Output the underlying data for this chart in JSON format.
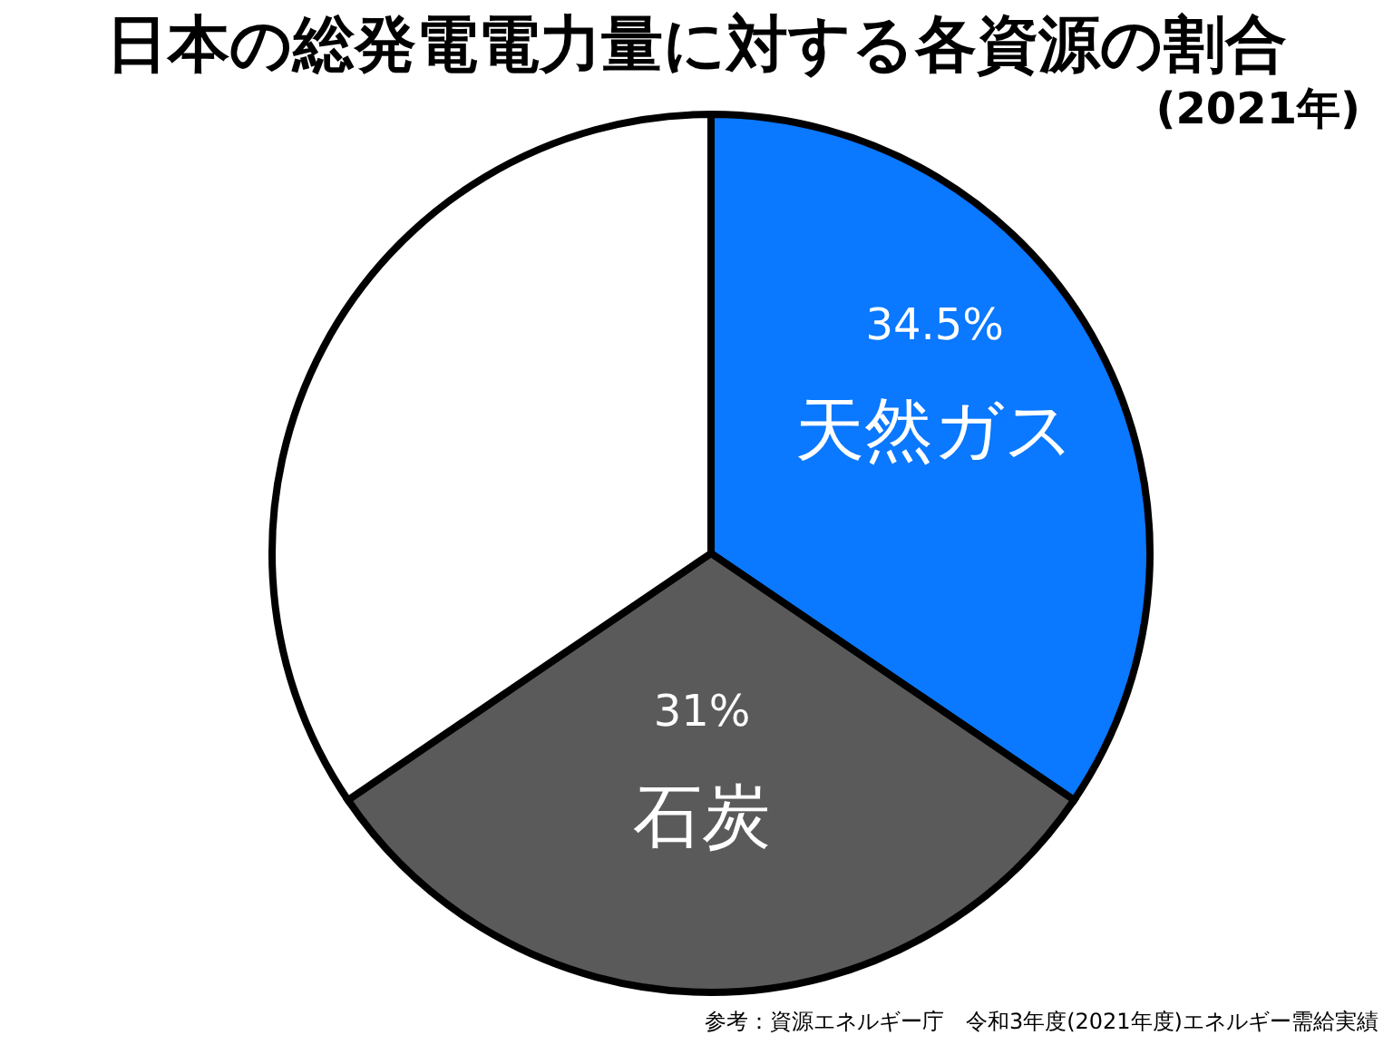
{
  "chart_data": {
    "type": "pie",
    "title": "日本の総発電電力量に対する各資源の割合",
    "subtitle": "(2021年)",
    "categories": [
      "天然ガス",
      "石炭",
      null
    ],
    "values": [
      34.5,
      31,
      34.5
    ],
    "colors": [
      "#0a78ff",
      "#5a5a5a",
      "#ffffff"
    ],
    "value_labels": [
      "34.5%",
      "31%",
      null
    ],
    "annotations": [
      "参考：資源エネルギー庁　令和3年度(2021年度)エネルギー需給実績"
    ]
  }
}
